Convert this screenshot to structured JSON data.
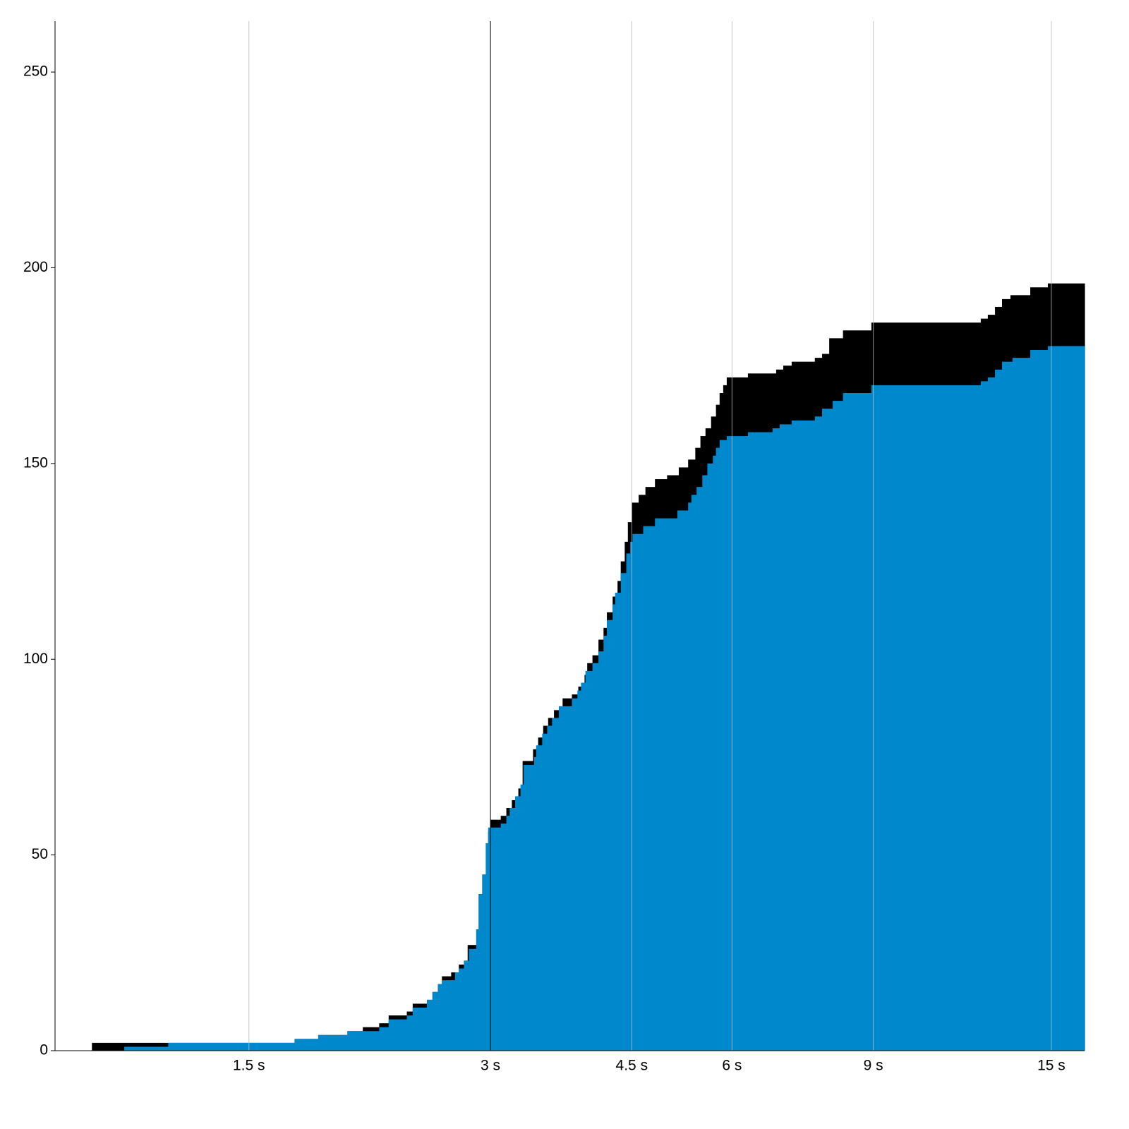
{
  "chart_data": {
    "type": "step-area",
    "xscale": "log",
    "xlim": [
      0.86,
      16.5
    ],
    "ylim": [
      0,
      263
    ],
    "xticks": [
      {
        "value": 1.5,
        "label": "1.5 s"
      },
      {
        "value": 3,
        "label": "3 s"
      },
      {
        "value": 4.5,
        "label": "4.5 s"
      },
      {
        "value": 6,
        "label": "6 s"
      },
      {
        "value": 9,
        "label": "9 s"
      },
      {
        "value": 15,
        "label": "15 s"
      }
    ],
    "yticks": [
      0,
      50,
      100,
      150,
      200,
      250
    ],
    "grid": true,
    "grid_color": "#cccccc",
    "reference_line": {
      "x": 3,
      "color": "#000000"
    },
    "series": [
      {
        "color": "#000000",
        "x": [
          0.956,
          1.71,
          1.83,
          1.99,
          2.08,
          2.18,
          2.24,
          2.36,
          2.4,
          2.5,
          2.54,
          2.58,
          2.61,
          2.68,
          2.74,
          2.78,
          2.81,
          2.88,
          2.9,
          2.93,
          2.96,
          2.98,
          3.0,
          3.09,
          3.14,
          3.19,
          3.25,
          3.29,
          3.39,
          3.44,
          3.49,
          3.54,
          3.6,
          3.69,
          3.79,
          3.86,
          3.93,
          3.96,
          4.02,
          4.09,
          4.15,
          4.19,
          4.26,
          4.32,
          4.36,
          4.41,
          4.45,
          4.5,
          4.59,
          4.68,
          4.81,
          4.98,
          5.15,
          5.29,
          5.4,
          5.48,
          5.56,
          5.65,
          5.73,
          5.79,
          5.85,
          5.91,
          6.28,
          6.81,
          6.95,
          7.12,
          7.61,
          7.77,
          7.93,
          8.25,
          8.95,
          12.25,
          12.5,
          12.76,
          13.02,
          13.34,
          14.12,
          14.85
        ],
        "values": [
          2,
          3,
          4,
          5,
          6,
          7,
          9,
          10,
          12,
          13,
          15,
          17,
          19,
          20,
          22,
          23,
          27,
          31,
          40,
          45,
          53,
          56,
          59,
          60,
          62,
          64,
          67,
          74,
          77,
          80,
          83,
          85,
          87,
          90,
          91,
          93,
          96,
          99,
          101,
          105,
          108,
          112,
          116,
          120,
          125,
          130,
          135,
          140,
          142,
          144,
          146,
          147,
          149,
          151,
          154,
          157,
          159,
          162,
          165,
          168,
          170,
          172,
          173,
          174,
          175,
          176,
          177,
          178,
          182,
          184,
          186,
          187,
          188,
          190,
          192,
          193,
          195,
          196
        ]
      },
      {
        "color": "#0088cc",
        "x": [
          1.049,
          1.19,
          1.71,
          1.83,
          1.99,
          2.18,
          2.24,
          2.36,
          2.4,
          2.5,
          2.54,
          2.58,
          2.61,
          2.71,
          2.74,
          2.78,
          2.82,
          2.88,
          2.9,
          2.93,
          2.96,
          2.98,
          3.09,
          3.14,
          3.17,
          3.22,
          3.27,
          3.3,
          3.4,
          3.42,
          3.48,
          3.53,
          3.58,
          3.65,
          3.79,
          3.85,
          3.89,
          3.94,
          4.02,
          4.09,
          4.15,
          4.19,
          4.26,
          4.29,
          4.36,
          4.43,
          4.48,
          4.51,
          4.65,
          4.81,
          5.13,
          5.29,
          5.34,
          5.42,
          5.51,
          5.59,
          5.68,
          5.73,
          5.79,
          5.91,
          6.28,
          6.74,
          6.88,
          7.12,
          7.61,
          7.77,
          8.01,
          8.25,
          8.95,
          12.25,
          12.5,
          12.76,
          13.02,
          13.42,
          14.12,
          14.85
        ],
        "values": [
          1,
          2,
          3,
          4,
          5,
          6,
          8,
          9,
          11,
          13,
          15,
          17,
          18,
          20,
          21,
          23,
          26,
          31,
          40,
          45,
          53,
          57,
          58,
          60,
          62,
          65,
          68,
          73,
          75,
          78,
          81,
          83,
          85,
          88,
          90,
          92,
          94,
          97,
          99,
          102,
          106,
          110,
          114,
          117,
          122,
          127,
          130,
          132,
          134,
          136,
          138,
          140,
          142,
          144,
          147,
          150,
          152,
          154,
          156,
          157,
          158,
          159,
          160,
          161,
          162,
          164,
          166,
          168,
          170,
          171,
          172,
          174,
          176,
          177,
          179,
          180
        ]
      }
    ]
  }
}
